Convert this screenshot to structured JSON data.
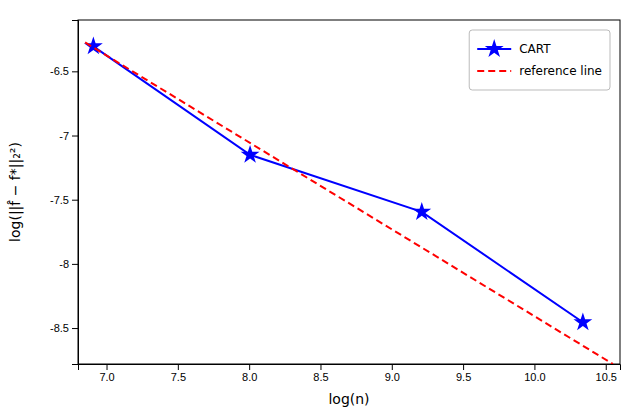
{
  "chart_data": {
    "type": "line",
    "x_label": "log(n)",
    "y_label": "log(||f̂ − f*||₂²)",
    "xlim": [
      6.8,
      10.6
    ],
    "ylim": [
      -8.78,
      -6.1
    ],
    "xticks": [
      {
        "value": 7.0,
        "label": "7.0"
      },
      {
        "value": 7.5,
        "label": "7.5"
      },
      {
        "value": 8.0,
        "label": "8.0"
      },
      {
        "value": 8.5,
        "label": "8.5"
      },
      {
        "value": 9.0,
        "label": "9.0"
      },
      {
        "value": 9.5,
        "label": "9.5"
      },
      {
        "value": 10.0,
        "label": "10.0"
      },
      {
        "value": 10.5,
        "label": "10.5"
      }
    ],
    "yticks": [
      -8.5,
      -8.0,
      -7.5,
      -7.0,
      -6.5
    ],
    "legend": "upper right",
    "series": [
      {
        "name": "CART",
        "color": "#0000FF",
        "line_style": "solid",
        "marker": "star",
        "x": [
          6.9078,
          8.0064,
          9.2103,
          10.3397
        ],
        "values": [
          -6.305,
          -7.15,
          -7.595,
          -8.455
        ]
      },
      {
        "name": "reference line",
        "color": "#FF0000",
        "line_style": "dashed",
        "x": [
          6.85,
          10.55
        ],
        "values": [
          -6.275,
          -8.78
        ]
      }
    ]
  }
}
